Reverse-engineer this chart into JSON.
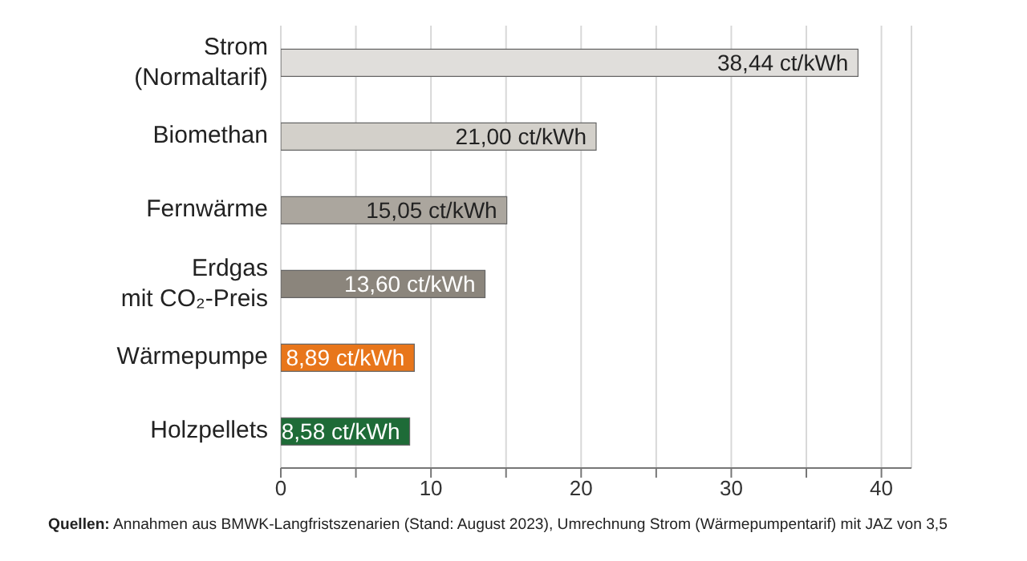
{
  "chart_data": {
    "type": "bar",
    "orientation": "horizontal",
    "categories": [
      "Strom (Normaltarif)",
      "Biomethan",
      "Fernwärme",
      "Erdgas mit CO₂-Preis",
      "Wärmepumpe",
      "Holzpellets"
    ],
    "values": [
      38.44,
      21.0,
      15.05,
      13.6,
      8.89,
      8.58
    ],
    "colors": [
      "#e0dedb",
      "#d3d0ca",
      "#aba69e",
      "#8b857c",
      "#e8761b",
      "#1e6b37"
    ],
    "value_labels": [
      "38,44 ct/kWh",
      "21,00 ct/kWh",
      "15,05 ct/kWh",
      "13,60 ct/kWh",
      "8,89 ct/kWh",
      "8,58 ct/kWh"
    ],
    "xlim": [
      0,
      42
    ],
    "xticks": [
      0,
      {
        "value": 5,
        "label": null
      },
      10,
      {
        "value": 15,
        "label": null
      },
      20,
      {
        "value": 25,
        "label": null
      },
      30,
      {
        "value": 35,
        "label": null
      },
      40
    ],
    "grid": "x",
    "legend": false,
    "annotations": [
      "Quellen: Annahmen aus BMWK-Langfristszenarien (Stand: August 2023), Umrechnung Strom (Wärmepumpentarif) mit JAZ von 3,5"
    ]
  }
}
